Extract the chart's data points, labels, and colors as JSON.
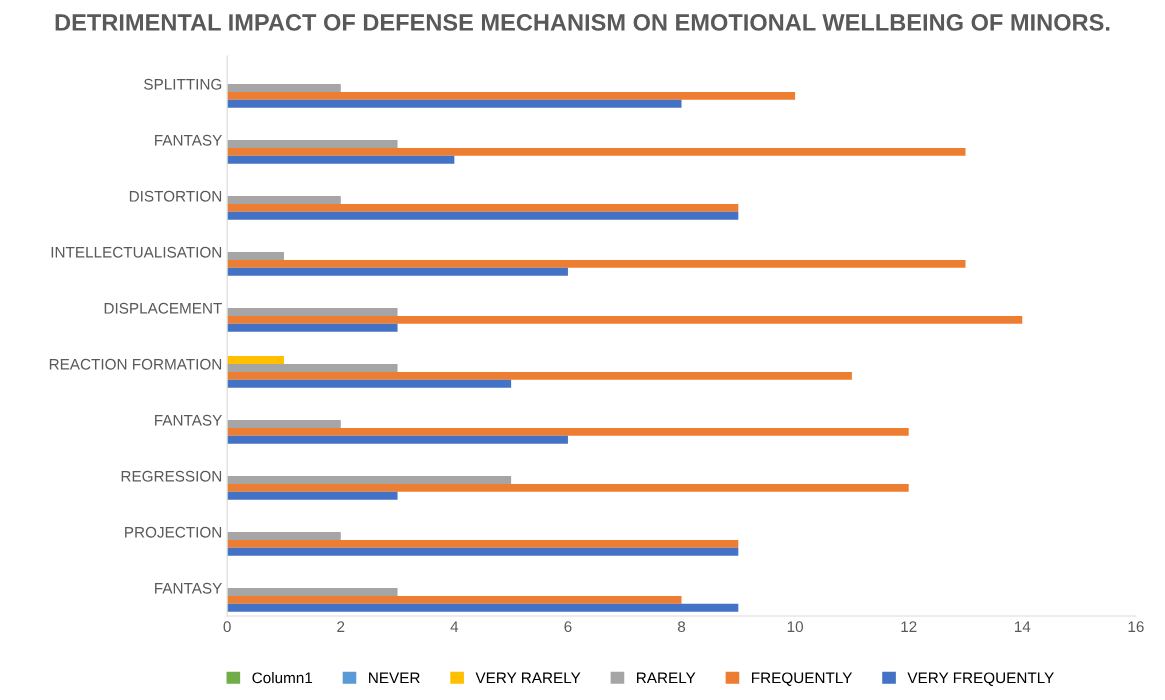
{
  "chart_data": {
    "type": "bar",
    "orientation": "horizontal",
    "title": "DETRIMENTAL IMPACT OF DEFENSE MECHANISM ON EMOTIONAL WELLBEING OF MINORS.",
    "categories": [
      "SPLITTING",
      "FANTASY",
      "DISTORTION",
      "INTELLECTUALISATION",
      "DISPLACEMENT",
      "REACTION FORMATION",
      "FANTASY",
      "REGRESSION",
      "PROJECTION",
      "FANTASY"
    ],
    "series": [
      {
        "name": "Column1",
        "color": "#70ad47",
        "values": [
          null,
          null,
          null,
          null,
          null,
          null,
          null,
          null,
          null,
          null
        ]
      },
      {
        "name": "NEVER",
        "color": "#5b9bd5",
        "values": [
          null,
          null,
          null,
          null,
          null,
          null,
          null,
          null,
          null,
          null
        ]
      },
      {
        "name": "VERY RARELY",
        "color": "#ffc000",
        "values": [
          null,
          null,
          null,
          null,
          null,
          1,
          null,
          null,
          null,
          null
        ]
      },
      {
        "name": "RARELY",
        "color": "#a5a5a5",
        "values": [
          2,
          3,
          2,
          1,
          3,
          3,
          2,
          5,
          2,
          3
        ]
      },
      {
        "name": "FREQUENTLY",
        "color": "#ed7d31",
        "values": [
          10,
          13,
          9,
          13,
          14,
          11,
          12,
          12,
          9,
          8
        ]
      },
      {
        "name": "VERY FREQUENTLY",
        "color": "#4472c4",
        "values": [
          8,
          4,
          9,
          6,
          3,
          5,
          6,
          3,
          9,
          9
        ]
      }
    ],
    "xlim": [
      0,
      16
    ],
    "xticks": [
      0,
      2,
      4,
      6,
      8,
      10,
      12,
      14,
      16
    ],
    "grid": false,
    "legend": "bottom"
  }
}
